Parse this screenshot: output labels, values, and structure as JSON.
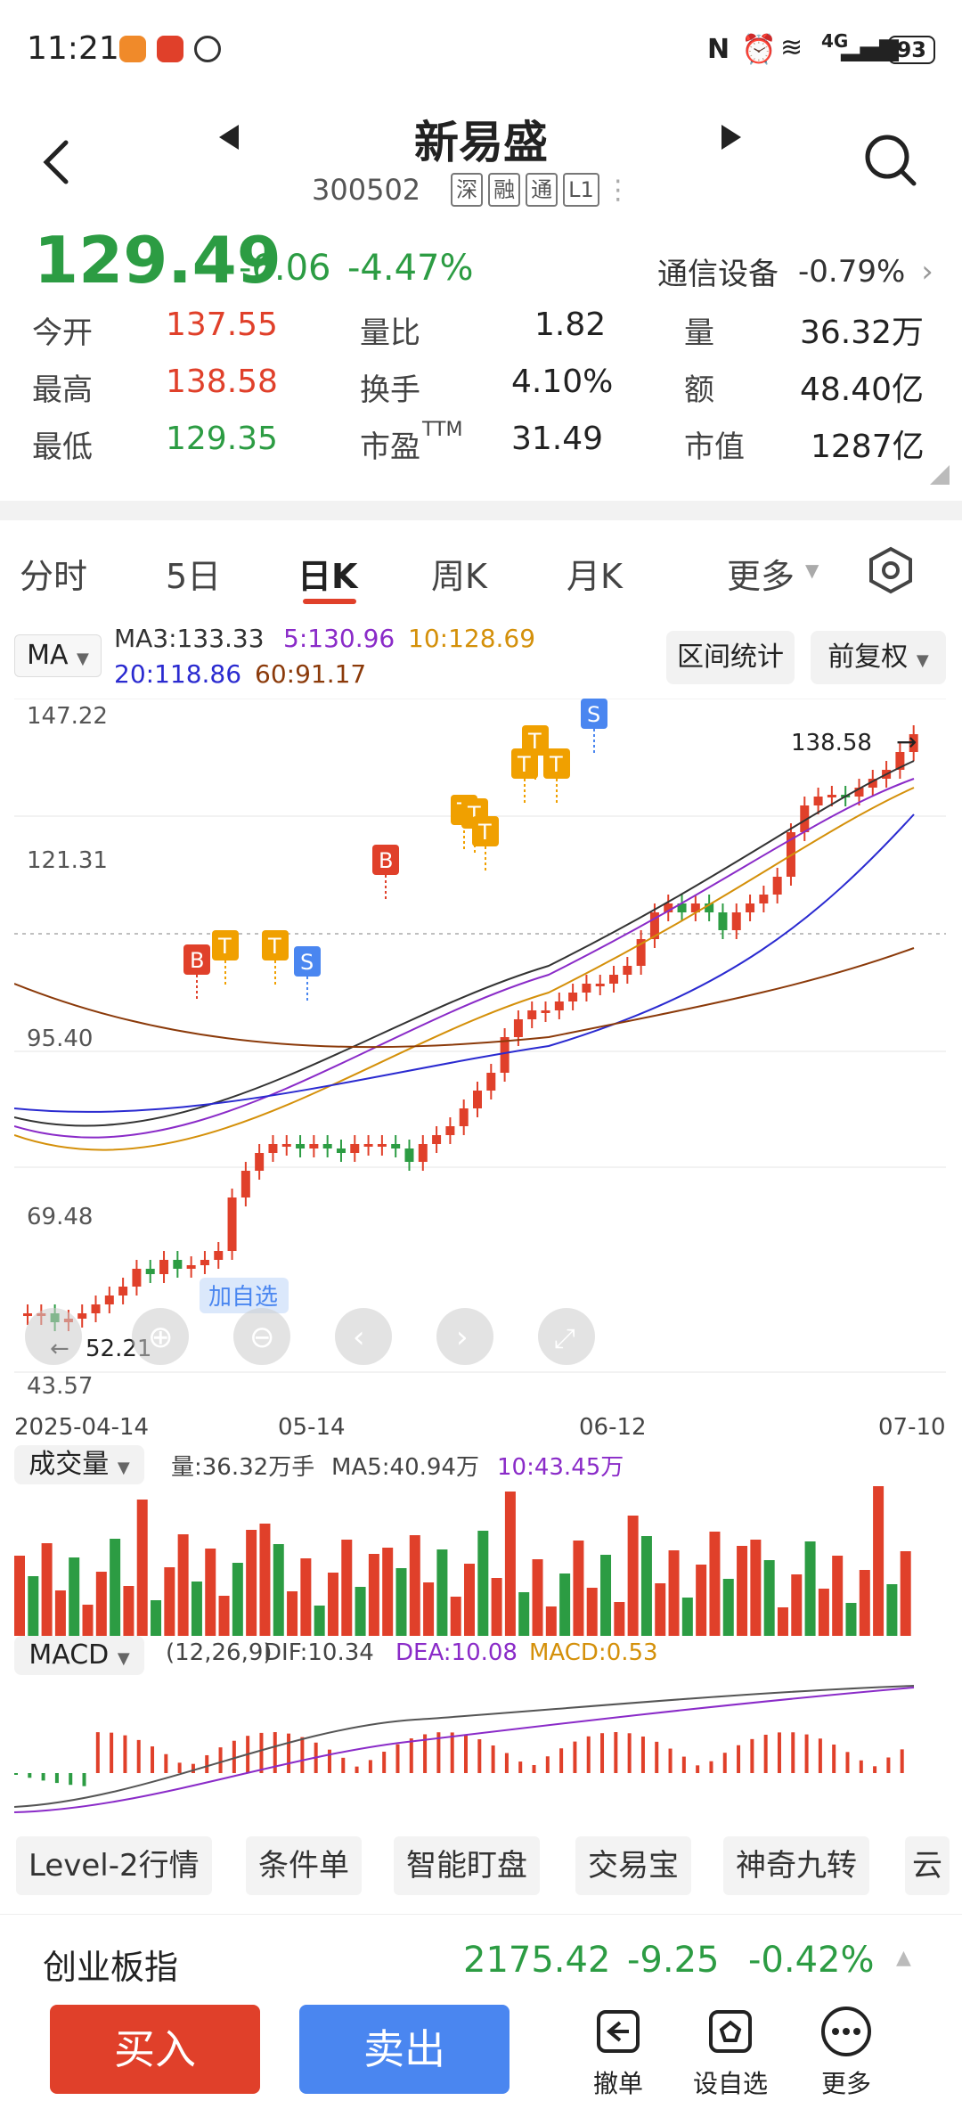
{
  "status_bar": {
    "time": "11:21",
    "network": "4G",
    "battery": "93"
  },
  "header": {
    "stock_name": "新易盛",
    "code": "300502",
    "tags": [
      "深",
      "融",
      "通",
      "L1"
    ]
  },
  "quote": {
    "price": "129.49",
    "change": "-6.06",
    "change_pct": "-4.47%",
    "industry": "通信设备",
    "industry_pct": "-0.79%",
    "items": [
      {
        "label": "今开",
        "value": "137.55"
      },
      {
        "label": "量比",
        "value": "1.82"
      },
      {
        "label": "量",
        "value": "36.32万"
      },
      {
        "label": "最高",
        "value": "138.58"
      },
      {
        "label": "换手",
        "value": "4.10%"
      },
      {
        "label": "额",
        "value": "48.40亿"
      },
      {
        "label": "最低",
        "value": "129.35"
      },
      {
        "label": "市盈",
        "value": "31.49"
      },
      {
        "label": "市值",
        "value": "1287亿"
      }
    ],
    "ttm_sup": "TTM"
  },
  "tabs": [
    "分时",
    "5日",
    "日K",
    "周K",
    "月K",
    "更多"
  ],
  "ma": {
    "selector": "MA",
    "ma3": "MA3:133.33",
    "ma5": "5:130.96",
    "ma10": "10:128.69",
    "ma20": "20:118.86",
    "ma60": "60:91.17",
    "interval_btn": "区间统计",
    "adjust_btn": "前复权"
  },
  "kline": {
    "y_labels": [
      "147.22",
      "121.31",
      "95.40",
      "69.48",
      "43.57"
    ],
    "x_labels": [
      "2025-04-14",
      "05-14",
      "06-12",
      "07-10"
    ],
    "high_marker": "138.58",
    "low_marker": "52.21",
    "add_watch": "加自选",
    "signals": [
      "B",
      "T",
      "T",
      "S",
      "B",
      "T",
      "T",
      "T",
      "T",
      "T",
      "T",
      "S"
    ]
  },
  "volume": {
    "selector": "成交量",
    "vol": "量:36.32万手",
    "ma5": "MA5:40.94万",
    "ma10": "10:43.45万"
  },
  "macd": {
    "selector": "MACD",
    "params": "(12,26,9)",
    "dif": "DIF:10.34",
    "dea": "DEA:10.08",
    "macd": "MACD:0.53"
  },
  "chips": [
    "Level-2行情",
    "条件单",
    "智能盯盘",
    "交易宝",
    "神奇九转",
    "云"
  ],
  "index": {
    "name": "创业板指",
    "value": "2175.42",
    "change": "-9.25",
    "change_pct": "-0.42%"
  },
  "bottom": {
    "buy": "买入",
    "sell": "卖出",
    "revoke": "撤单",
    "watch": "设自选",
    "more": "更多"
  },
  "colors": {
    "up": "#e0402a",
    "down": "#2c9c43",
    "blue": "#4a86f0",
    "ma5": "#8a2bc8",
    "ma10": "#d4900a",
    "ma20": "#2a2ad0",
    "ma60": "#8b3a0a"
  }
}
